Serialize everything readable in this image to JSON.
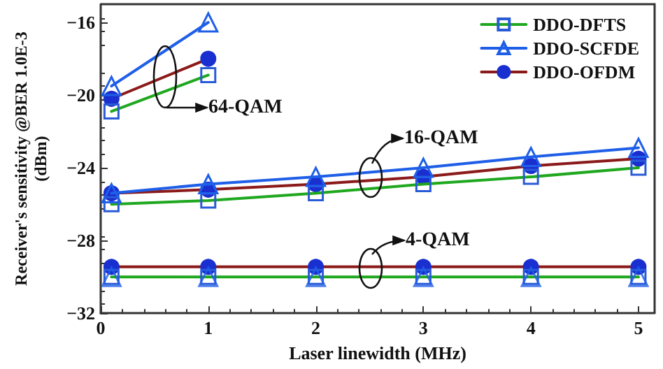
{
  "chart_data": {
    "type": "line",
    "xlabel": "Laser linewidth (MHz)",
    "ylabel": "Receiver's sensitivity @BER 1.0E-3\n(dBm)",
    "xlim": [
      0,
      5.15
    ],
    "xticks": [
      0,
      1,
      2,
      3,
      4,
      5
    ],
    "ylim": [
      -32,
      -15
    ],
    "yticks": [
      -32,
      -28,
      -24,
      -20,
      -16
    ],
    "grid": false,
    "legend": "top right",
    "series": [
      {
        "name": "DDO-DFTS",
        "color": "#1fa81f",
        "marker": "square",
        "x": [
          0.1,
          1,
          2,
          3,
          4,
          5
        ],
        "values": [
          -26.0,
          -25.8,
          -25.4,
          -24.9,
          -24.5,
          -24.0
        ],
        "colors": [
          "#2a5bd7",
          "#2a5bd7",
          "#2a5bd7",
          "#2a5bd7",
          "#2a5bd7",
          "#2a5bd7"
        ]
      },
      {
        "name": "DDO-SCFDE",
        "color": "#1f5fe8",
        "marker": "triangle",
        "x": [
          0.1,
          1,
          2,
          3,
          4,
          5
        ],
        "values": [
          -25.4,
          -24.9,
          -24.5,
          -24.0,
          -23.4,
          -22.9
        ],
        "colors": [
          "#1f5fe8",
          "#1f5fe8",
          "#1f5fe8",
          "#1f5fe8",
          "#1f5fe8",
          "#1f5fe8"
        ]
      },
      {
        "name": "DDO-OFDM",
        "color": "#8b1a1a",
        "marker": "circle",
        "x": [
          0.1,
          1,
          2,
          3,
          4,
          5
        ],
        "values": [
          -25.4,
          -25.2,
          -24.9,
          -24.5,
          -23.9,
          -23.5
        ],
        "colors": [
          "#1a2fd0",
          "#1a2fd0",
          "#1a2fd0",
          "#1a2fd0",
          "#1a2fd0",
          "#1a2fd0"
        ]
      },
      {
        "color": "#1fa81f",
        "marker": "square",
        "x": [
          0.1,
          1
        ],
        "values": [
          -20.9,
          -18.9
        ],
        "colors": [
          "#2a5bd7",
          "#2a5bd7"
        ]
      },
      {
        "color": "#1f5fe8",
        "marker": "triangle",
        "x": [
          0.1,
          1
        ],
        "values": [
          -19.5,
          -16.0
        ],
        "colors": [
          "#1f5fe8",
          "#1f5fe8"
        ]
      },
      {
        "color": "#8b1a1a",
        "marker": "circle",
        "x": [
          0.1,
          1
        ],
        "values": [
          -20.2,
          -18.0
        ],
        "colors": [
          "#1a2fd0",
          "#1a2fd0"
        ]
      },
      {
        "color": "#1fa81f",
        "marker": "square",
        "x": [
          0.1,
          1,
          2,
          3,
          4,
          5
        ],
        "values": [
          -30.0,
          -30.0,
          -30.0,
          -30.0,
          -30.0,
          -30.0
        ],
        "colors": [
          "#2a5bd7",
          "#2a5bd7",
          "#2a5bd7",
          "#2a5bd7",
          "#2a5bd7",
          "#2a5bd7"
        ]
      },
      {
        "type": "scatter",
        "color": "#1f5fe8",
        "marker": "triangle",
        "x": [
          0.1,
          1,
          2,
          3,
          4,
          5
        ],
        "values": [
          -30.0,
          -30.0,
          -30.0,
          -30.0,
          -30.0,
          -30.0
        ],
        "colors": [
          "#1f5fe8",
          "#1f5fe8",
          "#1f5fe8",
          "#1f5fe8",
          "#1f5fe8",
          "#1f5fe8"
        ]
      },
      {
        "color": "#8b1a1a",
        "marker": "circle",
        "x": [
          0.1,
          1,
          2,
          3,
          4,
          5
        ],
        "values": [
          -29.45,
          -29.45,
          -29.45,
          -29.45,
          -29.45,
          -29.45
        ],
        "colors": [
          "#1a2fd0",
          "#1a2fd0",
          "#1a2fd0",
          "#1a2fd0",
          "#1a2fd0",
          "#1a2fd0"
        ]
      }
    ],
    "annotations": [
      "64-QAM",
      "16-QAM",
      "4-QAM"
    ]
  }
}
